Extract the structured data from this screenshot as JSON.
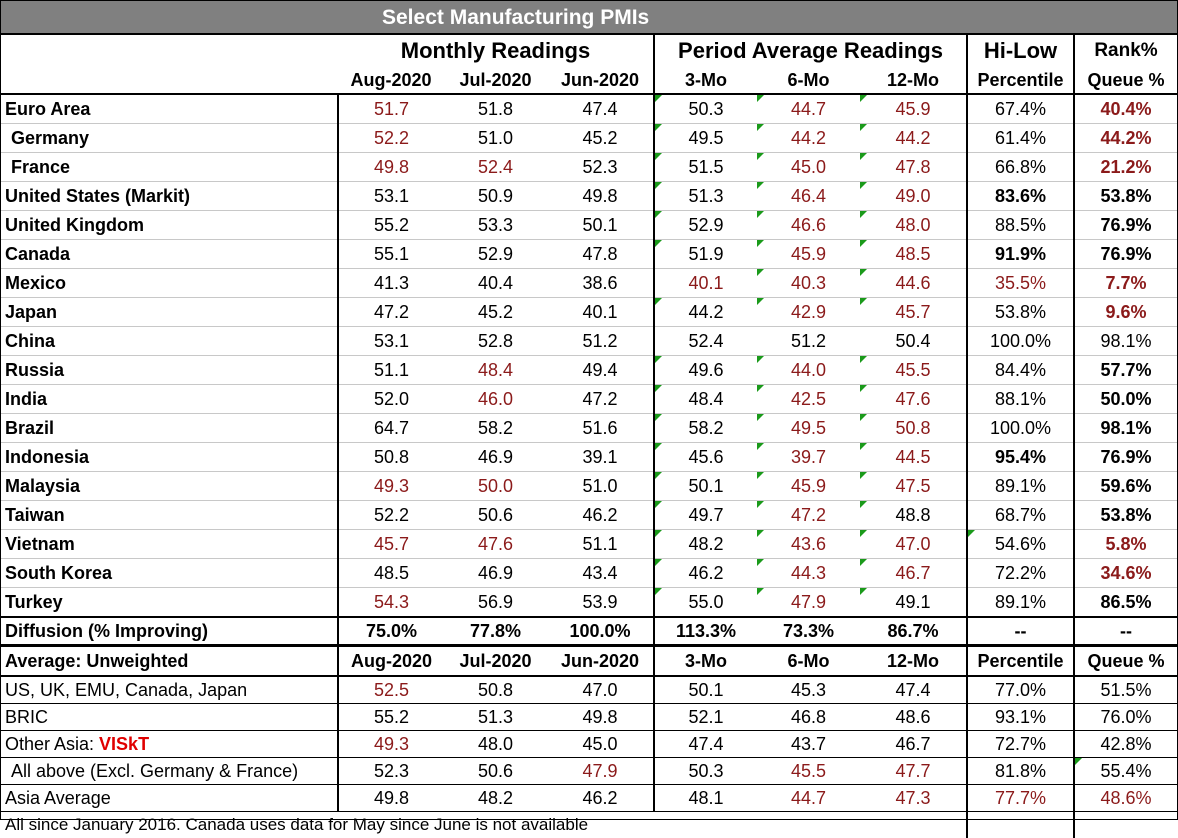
{
  "title": "Select Manufacturing PMIs",
  "groups": {
    "monthly": "Monthly Readings",
    "period": "Period Average Readings",
    "hilow": "Hi-Low",
    "rank": "Rank%"
  },
  "columns": [
    "Aug-2020",
    "Jul-2020",
    "Jun-2020",
    "3-Mo",
    "6-Mo",
    "12-Mo",
    "Percentile",
    "Queue %"
  ],
  "rows": [
    {
      "label": "Euro Area",
      "v": [
        "51.7",
        "51.8",
        "47.4",
        "50.3",
        "44.7",
        "45.9",
        "67.4%",
        "40.4%"
      ]
    },
    {
      "label": "Germany",
      "v": [
        "52.2",
        "51.0",
        "45.2",
        "49.5",
        "44.2",
        "44.2",
        "61.4%",
        "44.2%"
      ]
    },
    {
      "label": "France",
      "v": [
        "49.8",
        "52.4",
        "52.3",
        "51.5",
        "45.0",
        "47.8",
        "66.8%",
        "21.2%"
      ]
    },
    {
      "label": "United States (Markit)",
      "v": [
        "53.1",
        "50.9",
        "49.8",
        "51.3",
        "46.4",
        "49.0",
        "83.6%",
        "53.8%"
      ]
    },
    {
      "label": "United Kingdom",
      "v": [
        "55.2",
        "53.3",
        "50.1",
        "52.9",
        "46.6",
        "48.0",
        "88.5%",
        "76.9%"
      ]
    },
    {
      "label": "Canada",
      "v": [
        "55.1",
        "52.9",
        "47.8",
        "51.9",
        "45.9",
        "48.5",
        "91.9%",
        "76.9%"
      ]
    },
    {
      "label": "Mexico",
      "v": [
        "41.3",
        "40.4",
        "38.6",
        "40.1",
        "40.3",
        "44.6",
        "35.5%",
        "7.7%"
      ]
    },
    {
      "label": "Japan",
      "v": [
        "47.2",
        "45.2",
        "40.1",
        "44.2",
        "42.9",
        "45.7",
        "53.8%",
        "9.6%"
      ]
    },
    {
      "label": "China",
      "v": [
        "53.1",
        "52.8",
        "51.2",
        "52.4",
        "51.2",
        "50.4",
        "100.0%",
        "98.1%"
      ]
    },
    {
      "label": "Russia",
      "v": [
        "51.1",
        "48.4",
        "49.4",
        "49.6",
        "44.0",
        "45.5",
        "84.4%",
        "57.7%"
      ]
    },
    {
      "label": "India",
      "v": [
        "52.0",
        "46.0",
        "47.2",
        "48.4",
        "42.5",
        "47.6",
        "88.1%",
        "50.0%"
      ]
    },
    {
      "label": "Brazil",
      "v": [
        "64.7",
        "58.2",
        "51.6",
        "58.2",
        "49.5",
        "50.8",
        "100.0%",
        "98.1%"
      ]
    },
    {
      "label": "Indonesia",
      "v": [
        "50.8",
        "46.9",
        "39.1",
        "45.6",
        "39.7",
        "44.5",
        "95.4%",
        "76.9%"
      ]
    },
    {
      "label": "Malaysia",
      "v": [
        "49.3",
        "50.0",
        "51.0",
        "50.1",
        "45.9",
        "47.5",
        "89.1%",
        "59.6%"
      ]
    },
    {
      "label": "Taiwan",
      "v": [
        "52.2",
        "50.6",
        "46.2",
        "49.7",
        "47.2",
        "48.8",
        "68.7%",
        "53.8%"
      ]
    },
    {
      "label": "Vietnam",
      "v": [
        "45.7",
        "47.6",
        "51.1",
        "48.2",
        "43.6",
        "47.0",
        "54.6%",
        "5.8%"
      ]
    },
    {
      "label": "South Korea",
      "v": [
        "48.5",
        "46.9",
        "43.4",
        "46.2",
        "44.3",
        "46.7",
        "72.2%",
        "34.6%"
      ]
    },
    {
      "label": "Turkey",
      "v": [
        "54.3",
        "56.9",
        "53.9",
        "55.0",
        "47.9",
        "49.1",
        "89.1%",
        "86.5%"
      ]
    }
  ],
  "diffusion": {
    "label": "Diffusion (% Improving)",
    "v": [
      "75.0%",
      "77.8%",
      "100.0%",
      "113.3%",
      "73.3%",
      "86.7%",
      "--",
      "--"
    ]
  },
  "average_header": {
    "label": "Average: Unweighted"
  },
  "averages": [
    {
      "label": "US, UK, EMU, Canada, Japan",
      "label_red": "",
      "v": [
        "52.5",
        "50.8",
        "47.0",
        "50.1",
        "45.3",
        "47.4",
        "77.0%",
        "51.5%"
      ]
    },
    {
      "label": "BRIC",
      "label_red": "",
      "v": [
        "55.2",
        "51.3",
        "49.8",
        "52.1",
        "46.8",
        "48.6",
        "93.1%",
        "76.0%"
      ]
    },
    {
      "label": "Other Asia: ",
      "label_red": "VISkT",
      "v": [
        "49.3",
        "48.0",
        "45.0",
        "47.4",
        "43.7",
        "46.7",
        "72.7%",
        "42.8%"
      ]
    },
    {
      "label": "All above (Excl. Germany & France)",
      "label_red": "",
      "v": [
        "52.3",
        "50.6",
        "47.9",
        "50.3",
        "45.5",
        "47.7",
        "81.8%",
        "55.4%"
      ]
    },
    {
      "label": "Asia Average",
      "label_red": "",
      "v": [
        "49.8",
        "48.2",
        "46.2",
        "48.1",
        "44.7",
        "47.3",
        "77.7%",
        "48.6%"
      ]
    }
  ],
  "footnote": "All since January 2016. Canada uses data for May since June is not available",
  "colors": {
    "header_bg": "#808080",
    "negative": "#8b1a1a",
    "highlight": "#e00000",
    "flag": "#1a9a1a"
  }
}
